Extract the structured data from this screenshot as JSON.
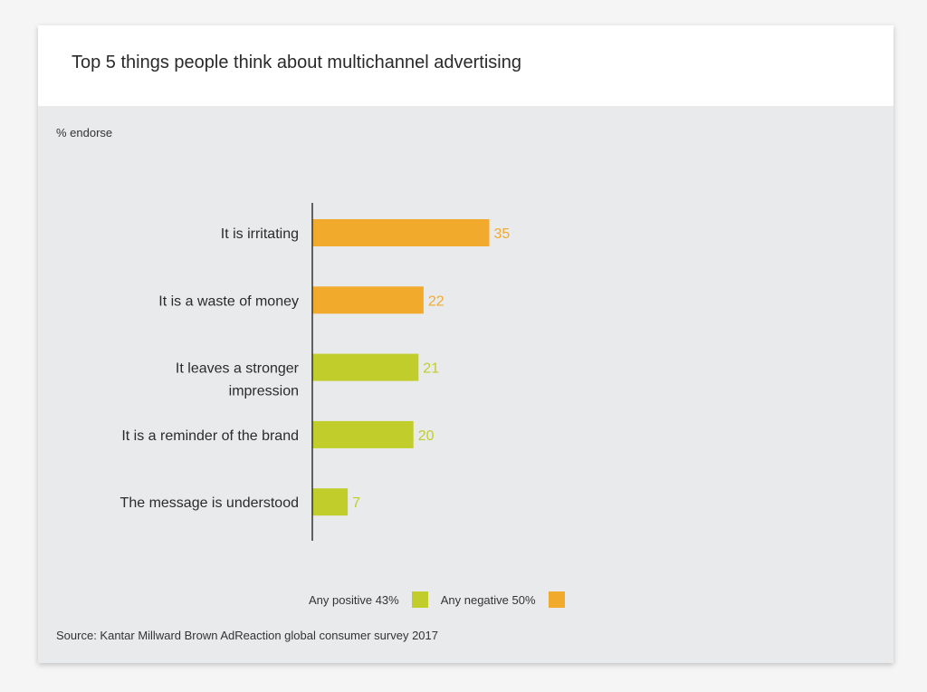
{
  "title": "Top 5 things people think about multichannel advertising",
  "unit_label": "% endorse",
  "source": "Source: Kantar Millward Brown AdReaction global consumer survey 2017",
  "colors": {
    "positive": "#c0cd2a",
    "negative": "#f2aa2d",
    "axis": "#333333"
  },
  "legend": [
    {
      "label": "Any positive 43%",
      "color": "#c0cd2a"
    },
    {
      "label": "Any negative 50%",
      "color": "#f2aa2d"
    }
  ],
  "chart_data": {
    "type": "bar",
    "orientation": "horizontal",
    "categories": [
      [
        "It is irritating"
      ],
      [
        "It is a waste of money"
      ],
      [
        "It leaves a stronger",
        "impression"
      ],
      [
        "It is a reminder of the brand"
      ],
      [
        "The message is understood"
      ]
    ],
    "values": [
      35,
      22,
      21,
      20,
      7
    ],
    "sentiment": [
      "negative",
      "negative",
      "positive",
      "positive",
      "positive"
    ],
    "data_labels": [
      "35",
      "22",
      "21",
      "20",
      "7"
    ],
    "xlim": [
      0,
      35
    ],
    "grid": false,
    "legend_position": "bottom"
  }
}
